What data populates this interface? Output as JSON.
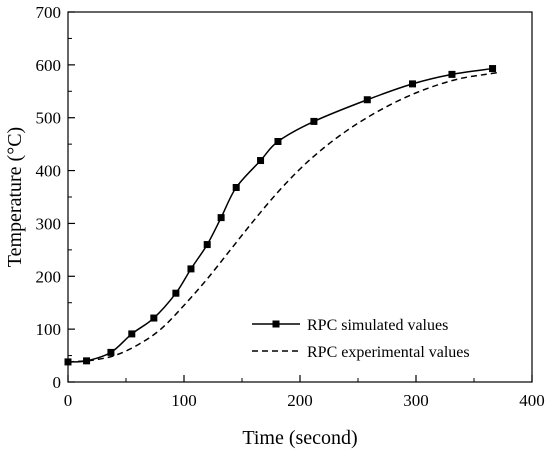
{
  "chart_data": {
    "type": "line",
    "title": "",
    "xlabel": "Time (second)",
    "ylabel": "Temperature (°C)",
    "xlim": [
      0,
      400
    ],
    "ylim": [
      0,
      700
    ],
    "x_ticks": [
      0,
      100,
      200,
      300,
      400
    ],
    "y_ticks": [
      0,
      100,
      200,
      300,
      400,
      500,
      600,
      700
    ],
    "grid": false,
    "legend_position": "bottom-right",
    "series": [
      {
        "name": "RPC simulated values",
        "style": "solid-with-square-markers",
        "color": "#000000",
        "x": [
          0,
          16,
          37,
          55,
          74,
          93,
          106,
          120,
          132,
          145,
          166,
          181,
          212,
          258,
          297,
          331,
          366
        ],
        "y": [
          38,
          40,
          56,
          91,
          121,
          168,
          214,
          260,
          311,
          368,
          419,
          455,
          493,
          534,
          564,
          582,
          593
        ]
      },
      {
        "name": "RPC experimental values",
        "style": "dashed",
        "color": "#000000",
        "x": [
          0,
          20,
          40,
          60,
          80,
          100,
          120,
          140,
          160,
          180,
          200,
          220,
          240,
          260,
          280,
          300,
          320,
          340,
          360,
          373
        ],
        "y": [
          38,
          41,
          50,
          70,
          100,
          145,
          195,
          250,
          305,
          357,
          403,
          442,
          475,
          503,
          527,
          547,
          563,
          575,
          582,
          586
        ]
      }
    ]
  }
}
